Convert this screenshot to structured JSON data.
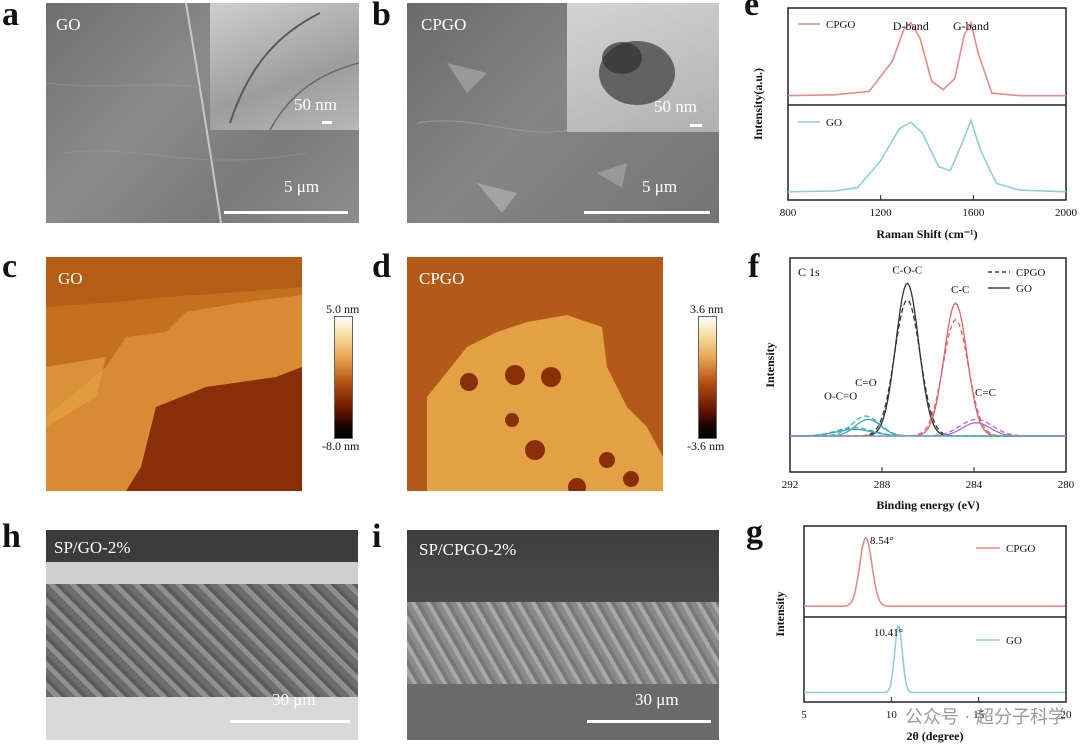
{
  "panels": {
    "a": {
      "label": "a",
      "sample": "GO",
      "scale_main": "5 μm",
      "scale_inset": "50 nm"
    },
    "b": {
      "label": "b",
      "sample": "CPGO",
      "scale_main": "5 μm",
      "scale_inset": "50 nm"
    },
    "c": {
      "label": "c",
      "sample": "GO",
      "cbar_top": "5.0 nm",
      "cbar_bottom": "-8.0 nm"
    },
    "d": {
      "label": "d",
      "sample": "CPGO",
      "cbar_top": "3.6 nm",
      "cbar_bottom": "-3.6 nm"
    },
    "h": {
      "label": "h",
      "sample": "SP/GO-2%",
      "scale": "30 μm"
    },
    "i": {
      "label": "i",
      "sample": "SP/CPGO-2%",
      "scale": "30 μm"
    },
    "e": {
      "label": "e",
      "ylabel": "Intensity(a.u.)",
      "xlabel": "Raman Shift (cm⁻¹)"
    },
    "f": {
      "label": "f",
      "ylabel": "Intensity",
      "xlabel": "Binding energy (eV)"
    },
    "g": {
      "label": "g",
      "ylabel": "Intensity",
      "xlabel": "2θ (degree)"
    }
  },
  "colors": {
    "cpgo": "#e88a8a",
    "go": "#8fcfd8",
    "afm_dark": "#8a2e08",
    "afm_light": "#e8a84c"
  },
  "chart_data": [
    {
      "panel": "e",
      "type": "line",
      "xlim": [
        800,
        2000
      ],
      "xticks": [
        "800",
        "1200",
        "1600",
        "2000"
      ],
      "annotations": [
        "D-band",
        "G-band"
      ],
      "series": [
        {
          "name": "CPGO",
          "x": [
            800,
            1000,
            1150,
            1250,
            1300,
            1330,
            1370,
            1420,
            1470,
            1520,
            1560,
            1590,
            1620,
            1680,
            1800,
            2000
          ],
          "y": [
            0.05,
            0.06,
            0.1,
            0.45,
            0.82,
            0.9,
            0.72,
            0.22,
            0.12,
            0.25,
            0.75,
            0.9,
            0.55,
            0.08,
            0.05,
            0.05
          ]
        },
        {
          "name": "GO",
          "x": [
            800,
            1000,
            1100,
            1200,
            1280,
            1330,
            1380,
            1450,
            1500,
            1550,
            1590,
            1630,
            1700,
            1800,
            2000
          ],
          "y": [
            0.05,
            0.06,
            0.1,
            0.42,
            0.8,
            0.88,
            0.75,
            0.35,
            0.3,
            0.62,
            0.9,
            0.55,
            0.15,
            0.07,
            0.05
          ]
        }
      ]
    },
    {
      "panel": "f",
      "type": "line",
      "xlim": [
        292,
        280
      ],
      "xticks": [
        "292",
        "288",
        "284",
        "280"
      ],
      "title": "C 1s",
      "annotations": [
        "C-O-C",
        "C-C",
        "C=O",
        "O-C=O",
        "C=C"
      ],
      "series": [
        {
          "name": "CPGO",
          "peaks": [
            {
              "center": 286.9,
              "height": 0.82,
              "width": 0.55
            },
            {
              "center": 284.8,
              "height": 0.7,
              "width": 0.55
            },
            {
              "center": 288.7,
              "height": 0.12,
              "width": 0.6
            },
            {
              "center": 289.2,
              "height": 0.05,
              "width": 0.8
            },
            {
              "center": 283.9,
              "height": 0.1,
              "width": 0.7
            }
          ]
        },
        {
          "name": "GO",
          "peaks": [
            {
              "center": 286.9,
              "height": 0.92,
              "width": 0.5
            },
            {
              "center": 284.8,
              "height": 0.8,
              "width": 0.5
            },
            {
              "center": 288.6,
              "height": 0.1,
              "width": 0.55
            },
            {
              "center": 289.2,
              "height": 0.04,
              "width": 0.8
            },
            {
              "center": 283.9,
              "height": 0.08,
              "width": 0.6
            }
          ]
        }
      ]
    },
    {
      "panel": "g",
      "type": "line",
      "xlim": [
        5,
        20
      ],
      "xticks": [
        "5",
        "10",
        "15",
        "20"
      ],
      "annotations": [
        "8.54°",
        "10.41°"
      ],
      "series": [
        {
          "name": "CPGO",
          "peak": 8.54,
          "height": 0.9,
          "width": 0.35,
          "baseline": 0.05
        },
        {
          "name": "GO",
          "peak": 10.41,
          "height": 0.95,
          "width": 0.22,
          "baseline": 0.05
        }
      ]
    }
  ],
  "watermark": "公众号 · 超分子科学"
}
